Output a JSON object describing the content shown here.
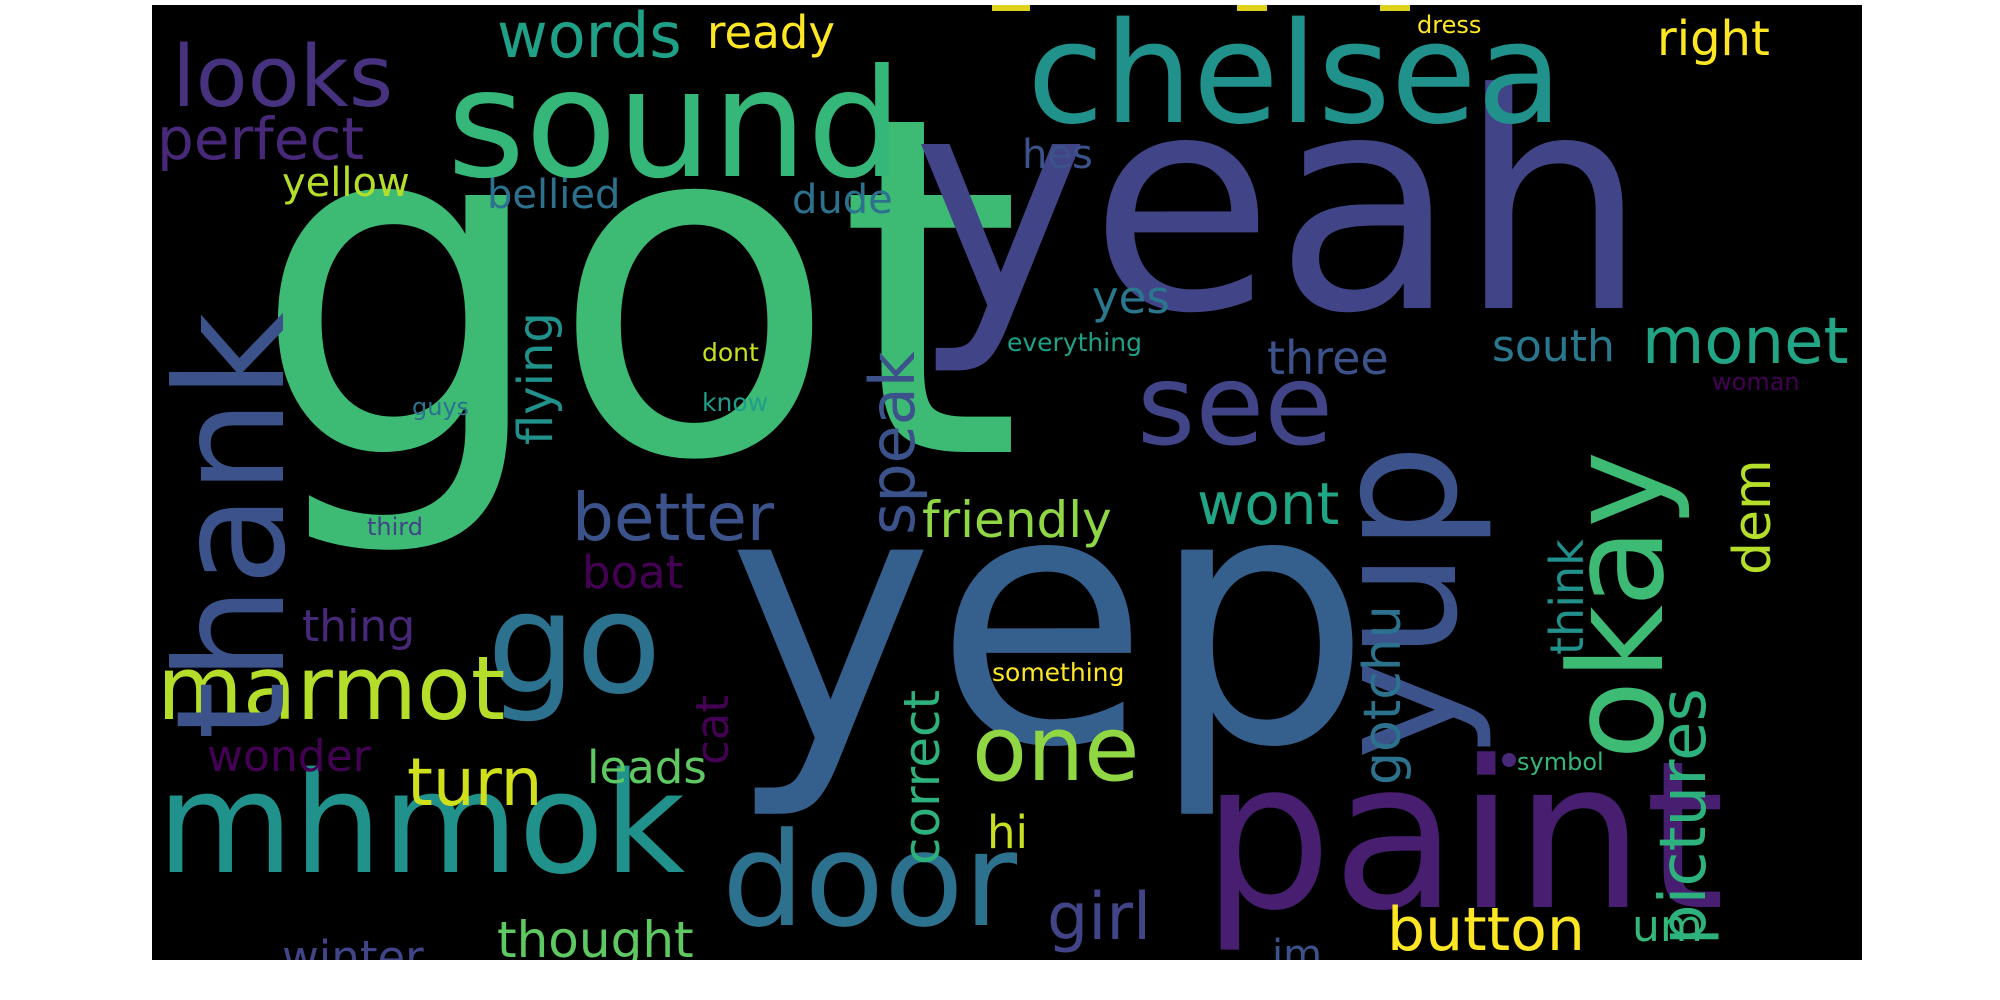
{
  "words": [
    {
      "text": "got",
      "color": "#3dbb75",
      "rot": false
    },
    {
      "text": "yeah",
      "color": "#414487",
      "rot": false
    },
    {
      "text": "yep",
      "color": "#355f8d",
      "rot": false
    },
    {
      "text": "paint",
      "color": "#481f70",
      "rot": false
    },
    {
      "text": "chelsea",
      "color": "#21918c",
      "rot": false
    },
    {
      "text": "sound",
      "color": "#35b779",
      "rot": false
    },
    {
      "text": "mhmok",
      "color": "#21918c",
      "rot": false
    },
    {
      "text": "door",
      "color": "#2c728e",
      "rot": false
    },
    {
      "text": "thank",
      "color": "#3b528b",
      "rot": true
    },
    {
      "text": "yup",
      "color": "#3b528b",
      "rot": true
    },
    {
      "text": "okay",
      "color": "#3dbb75",
      "rot": true
    },
    {
      "text": "see",
      "color": "#414487",
      "rot": false
    },
    {
      "text": "go",
      "color": "#2c728e",
      "rot": false
    },
    {
      "text": "marmot",
      "color": "#b5de2b",
      "rot": false
    },
    {
      "text": "looks",
      "color": "#46327e",
      "rot": false
    },
    {
      "text": "one",
      "color": "#90d743",
      "rot": false
    },
    {
      "text": "monet",
      "color": "#21a585",
      "rot": false
    },
    {
      "text": "button",
      "color": "#fde725",
      "rot": false
    },
    {
      "text": "girl",
      "color": "#414487",
      "rot": false
    },
    {
      "text": "better",
      "color": "#3b528b",
      "rot": false
    },
    {
      "text": "perfect",
      "color": "#482878",
      "rot": false
    },
    {
      "text": "words",
      "color": "#1fa187",
      "rot": false
    },
    {
      "text": "turn",
      "color": "#d0e11c",
      "rot": false
    },
    {
      "text": "pictures",
      "color": "#2db27d",
      "rot": true
    },
    {
      "text": "speak",
      "color": "#3b528b",
      "rot": true
    },
    {
      "text": "wont",
      "color": "#21a685",
      "rot": false
    },
    {
      "text": "friendly",
      "color": "#8fd744",
      "rot": false
    },
    {
      "text": "thought",
      "color": "#5ec962",
      "rot": false
    },
    {
      "text": "winter",
      "color": "#414487",
      "rot": false
    },
    {
      "text": "right",
      "color": "#fde725",
      "rot": false
    },
    {
      "text": "ready",
      "color": "#fde725",
      "rot": false
    },
    {
      "text": "three",
      "color": "#3b528b",
      "rot": false
    },
    {
      "text": "south",
      "color": "#2a788e",
      "rot": false
    },
    {
      "text": "wonder",
      "color": "#440154",
      "rot": false
    },
    {
      "text": "leads",
      "color": "#5ec962",
      "rot": false
    },
    {
      "text": "yellow",
      "color": "#b5de2b",
      "rot": false
    },
    {
      "text": "bellied",
      "color": "#2c728e",
      "rot": false
    },
    {
      "text": "dude",
      "color": "#2c728e",
      "rot": false
    },
    {
      "text": "hes",
      "color": "#3b528b",
      "rot": false
    },
    {
      "text": "yes",
      "color": "#2a788e",
      "rot": false
    },
    {
      "text": "boat",
      "color": "#440154",
      "rot": false
    },
    {
      "text": "thing",
      "color": "#482878",
      "rot": false
    },
    {
      "text": "hi",
      "color": "#c8e020",
      "rot": false
    },
    {
      "text": "um",
      "color": "#35b779",
      "rot": false
    },
    {
      "text": "im",
      "color": "#3b528b",
      "rot": false
    },
    {
      "text": "dem",
      "color": "#b5de2b",
      "rot": true
    },
    {
      "text": "flying",
      "color": "#21918c",
      "rot": true
    },
    {
      "text": "correct",
      "color": "#2db27d",
      "rot": true
    },
    {
      "text": "gotchu",
      "color": "#2c728e",
      "rot": true
    },
    {
      "text": "think",
      "color": "#21918c",
      "rot": true
    },
    {
      "text": "cat",
      "color": "#440154",
      "rot": true
    },
    {
      "text": "dress",
      "color": "#fde725",
      "rot": false
    },
    {
      "text": "everything",
      "color": "#1fa187",
      "rot": false
    },
    {
      "text": "dont",
      "color": "#c8e020",
      "rot": false
    },
    {
      "text": "know",
      "color": "#1f9e89",
      "rot": false
    },
    {
      "text": "guys",
      "color": "#2c728e",
      "rot": false
    },
    {
      "text": "third",
      "color": "#414487",
      "rot": false
    },
    {
      "text": "something",
      "color": "#fde725",
      "rot": false
    },
    {
      "text": "symbol",
      "color": "#35b779",
      "rot": false
    },
    {
      "text": "woman",
      "color": "#440154",
      "rot": false
    }
  ],
  "colors": {
    "background": "#000000",
    "page": "#ffffff"
  }
}
